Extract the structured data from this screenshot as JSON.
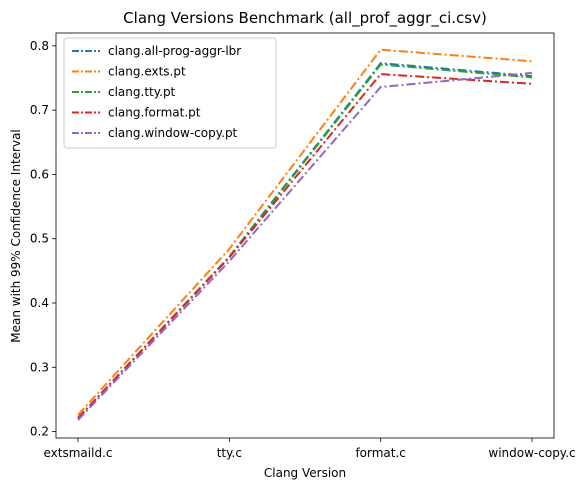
{
  "chart_data": {
    "type": "line",
    "title": "Clang Versions Benchmark (all_prof_aggr_ci.csv)",
    "xlabel": "Clang Version",
    "ylabel": "Mean with 99% Confidence Interval",
    "categories": [
      "extsmaild.c",
      "tty.c",
      "format.c",
      "window-copy.c"
    ],
    "ylim": [
      0.19,
      0.82
    ],
    "yticks": [
      0.2,
      0.3,
      0.4,
      0.5,
      0.6,
      0.7,
      0.8
    ],
    "ytick_labels": [
      "0.2",
      "0.3",
      "0.4",
      "0.5",
      "0.6",
      "0.7",
      "0.8"
    ],
    "grid": false,
    "legend_position": "top-left",
    "line_style": "dash-dot",
    "series": [
      {
        "name": "clang.all-prog-aggr-lbr",
        "color": "#1f77b4",
        "values": [
          0.221,
          0.472,
          0.773,
          0.753
        ]
      },
      {
        "name": "clang.exts.pt",
        "color": "#ff7f0e",
        "values": [
          0.226,
          0.484,
          0.794,
          0.776
        ]
      },
      {
        "name": "clang.tty.pt",
        "color": "#2ca02c",
        "values": [
          0.221,
          0.471,
          0.771,
          0.751
        ]
      },
      {
        "name": "clang.format.pt",
        "color": "#d62728",
        "values": [
          0.221,
          0.471,
          0.756,
          0.741
        ]
      },
      {
        "name": "clang.window-copy.pt",
        "color": "#9467bd",
        "values": [
          0.218,
          0.465,
          0.736,
          0.758
        ]
      }
    ]
  }
}
